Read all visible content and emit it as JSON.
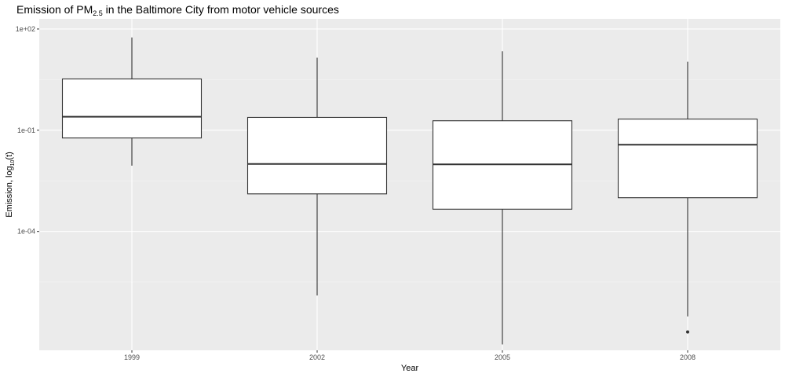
{
  "chart_data": {
    "type": "boxplot",
    "title": "Emission of PM",
    "title_subscript": "2.5",
    "title_rest": " in the Baltimore City from motor vehicle sources",
    "xlabel": "Year",
    "ylabel_prefix": "Emission, log",
    "ylabel_subscript": "10",
    "ylabel_suffix": "(t)",
    "y_scale": "log10",
    "ylim": [
      3e-08,
      200
    ],
    "y_ticks": [
      100,
      0.1,
      0.0001
    ],
    "y_tick_labels": [
      "1e+02",
      "1e-01",
      "1e-04"
    ],
    "categories": [
      "1999",
      "2002",
      "2005",
      "2008"
    ],
    "boxes": [
      {
        "category": "1999",
        "whisker_low": 0.00891,
        "q1": 0.0589,
        "median": 0.251,
        "q3": 3.31,
        "whisker_high": 56.2,
        "outliers": []
      },
      {
        "category": "2002",
        "whisker_low": 1.26e-06,
        "q1": 0.0013,
        "median": 0.01,
        "q3": 0.24,
        "whisker_high": 14.1,
        "outliers": []
      },
      {
        "category": "2005",
        "whisker_low": 4.47e-08,
        "q1": 0.000457,
        "median": 0.00977,
        "q3": 0.191,
        "whisker_high": 21.9,
        "outliers": []
      },
      {
        "category": "2008",
        "whisker_low": 3.02e-07,
        "q1": 0.001,
        "median": 0.0372,
        "q3": 0.214,
        "whisker_high": 10.7,
        "outliers": [
          1.05e-07
        ]
      }
    ],
    "grid": true,
    "legend": "none",
    "colors": {
      "panel_background": "#ebebeb",
      "grid_major": "#ffffff",
      "grid_minor": "#f5f5f5",
      "box_fill": "#ffffff",
      "box_stroke": "#333333",
      "outlier": "#333333"
    }
  }
}
